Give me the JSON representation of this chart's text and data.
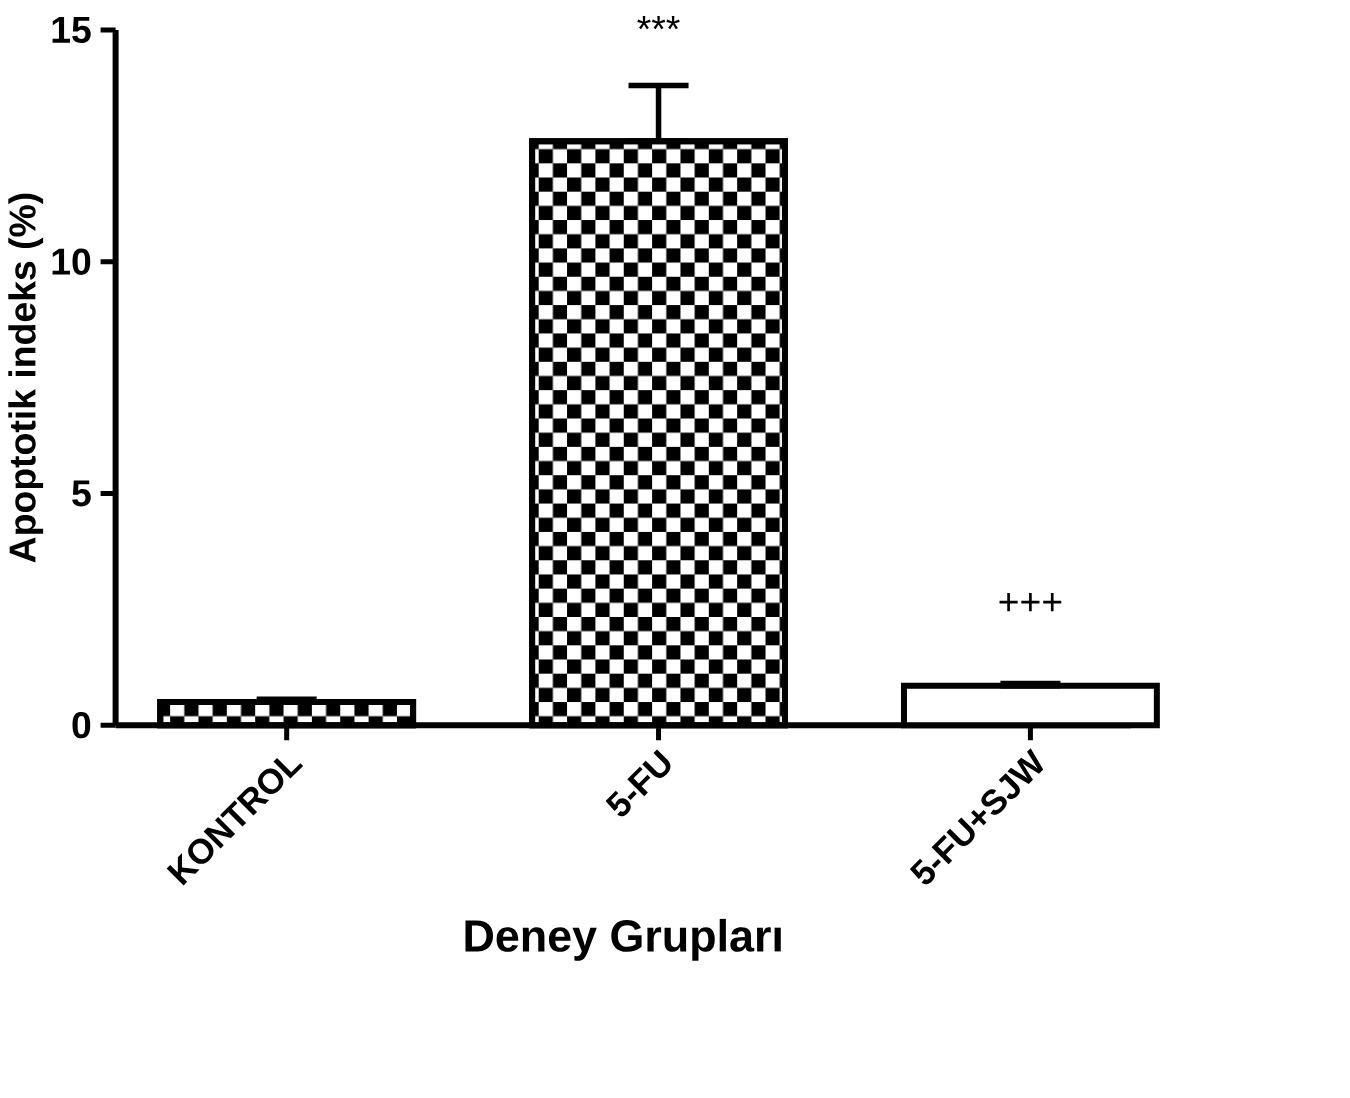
{
  "chart_data": {
    "type": "bar",
    "xlabel": "Deney Grupları",
    "ylabel": "Apoptotik indeks (%)",
    "categories": [
      "KONTROL",
      "5-FU",
      "5-FU+SJW"
    ],
    "values": [
      0.5,
      12.6,
      0.85
    ],
    "errors": [
      [
        0.5,
        0.56
      ],
      [
        12.6,
        13.8
      ],
      [
        0.85,
        0.9
      ]
    ],
    "colors": [
      "#000000",
      "#000000",
      "#000000"
    ],
    "ylim": [
      0,
      15
    ],
    "yticks": [
      0,
      5,
      10,
      15
    ],
    "grid": false,
    "annotations": [
      "***",
      "+++"
    ]
  }
}
